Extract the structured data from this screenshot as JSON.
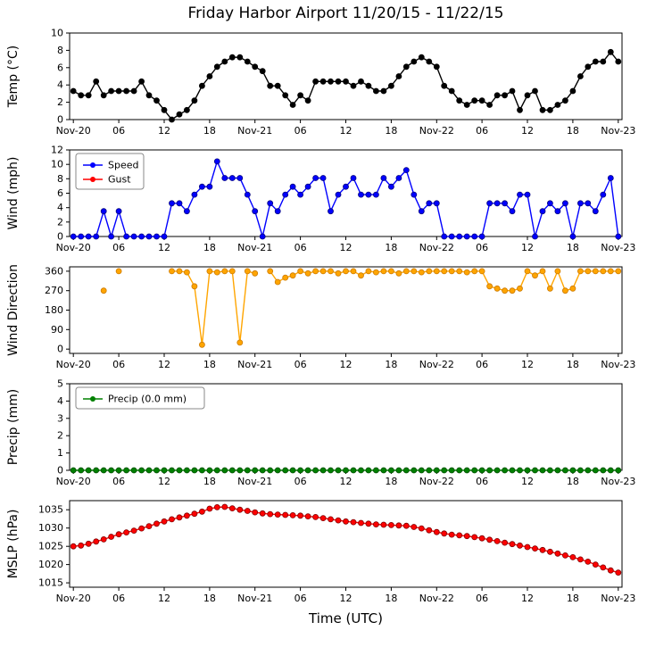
{
  "chart_data": {
    "type": "line",
    "title": "Friday Harbor Airport 11/20/15 - 11/22/15",
    "xlabel": "Time (UTC)",
    "xlim": [
      -0.5,
      72.5
    ],
    "x_ticks": {
      "positions": [
        0,
        6,
        12,
        18,
        24,
        30,
        36,
        42,
        48,
        54,
        60,
        66,
        72
      ],
      "labels": [
        "Nov-20",
        "06",
        "12",
        "18",
        "Nov-21",
        "06",
        "12",
        "18",
        "Nov-22",
        "06",
        "12",
        "18",
        "Nov-23"
      ]
    },
    "hours": [
      0,
      1,
      2,
      3,
      4,
      5,
      6,
      7,
      8,
      9,
      10,
      11,
      12,
      13,
      14,
      15,
      16,
      17,
      18,
      19,
      20,
      21,
      22,
      23,
      24,
      25,
      26,
      27,
      28,
      29,
      30,
      31,
      32,
      33,
      34,
      35,
      36,
      37,
      38,
      39,
      40,
      41,
      42,
      43,
      44,
      45,
      46,
      47,
      48,
      49,
      50,
      51,
      52,
      53,
      54,
      55,
      56,
      57,
      58,
      59,
      60,
      61,
      62,
      63,
      64,
      65,
      66,
      67,
      68,
      69,
      70,
      71,
      72
    ],
    "charts": [
      {
        "name": "temp",
        "ylabel": "Temp (°C)",
        "ylim": [
          0,
          10
        ],
        "yticks": [
          0,
          2,
          4,
          6,
          8,
          10
        ],
        "series": [
          {
            "name": "Temp",
            "color": "#000000",
            "edge": "#000000",
            "values": [
              3.3,
              2.8,
              2.8,
              4.4,
              2.8,
              3.3,
              3.3,
              3.3,
              3.3,
              4.4,
              2.8,
              2.2,
              1.1,
              0.0,
              0.6,
              1.1,
              2.2,
              3.9,
              5.0,
              6.1,
              6.7,
              7.2,
              7.2,
              6.7,
              6.1,
              5.6,
              3.9,
              3.9,
              2.8,
              1.7,
              2.8,
              2.2,
              4.4,
              4.4,
              4.4,
              4.4,
              4.4,
              3.9,
              4.4,
              3.9,
              3.3,
              3.3,
              3.9,
              5.0,
              6.1,
              6.7,
              7.2,
              6.7,
              6.1,
              3.9,
              3.3,
              2.2,
              1.7,
              2.2,
              2.2,
              1.7,
              2.8,
              2.8,
              3.3,
              1.1,
              2.8,
              3.3,
              1.1,
              1.1,
              1.7,
              2.2,
              3.3,
              5.0,
              6.1,
              6.7,
              6.7,
              7.8,
              6.7
            ]
          }
        ]
      },
      {
        "name": "wind",
        "ylabel": "Wind (mph)",
        "ylim": [
          0,
          12
        ],
        "yticks": [
          0,
          2,
          4,
          6,
          8,
          10,
          12
        ],
        "legend": [
          {
            "label": "Speed",
            "color": "#0000ff"
          },
          {
            "label": "Gust",
            "color": "#ff0000"
          }
        ],
        "series": [
          {
            "name": "Speed",
            "color": "#0000ff",
            "edge": "#000080",
            "values": [
              0,
              0,
              0,
              0,
              3.5,
              0,
              3.5,
              0,
              0,
              0,
              0,
              0,
              0,
              4.6,
              4.6,
              3.5,
              5.8,
              6.9,
              6.9,
              10.4,
              8.1,
              8.1,
              8.1,
              5.8,
              3.5,
              0,
              4.6,
              3.5,
              5.8,
              6.9,
              5.8,
              6.9,
              8.1,
              8.1,
              3.5,
              5.8,
              6.9,
              8.1,
              5.8,
              5.8,
              5.8,
              8.1,
              6.9,
              8.1,
              9.2,
              5.8,
              3.5,
              4.6,
              4.6,
              0,
              0,
              0,
              0,
              0,
              0,
              4.6,
              4.6,
              4.6,
              3.5,
              5.8,
              5.8,
              0,
              3.5,
              4.6,
              3.5,
              4.6,
              0,
              4.6,
              4.6,
              3.5,
              5.8,
              8.1,
              0
            ]
          },
          {
            "name": "Gust",
            "color": "#ff0000",
            "edge": "#800000",
            "values": null
          }
        ]
      },
      {
        "name": "wind-direction",
        "ylabel": "Wind Direction",
        "ylim": [
          -20,
          380
        ],
        "yticks": [
          0,
          90,
          180,
          270,
          360
        ],
        "series": [
          {
            "name": "Direction",
            "color": "#ffa500",
            "edge": "#cc7a00",
            "values": [
              null,
              null,
              null,
              null,
              270,
              null,
              360,
              null,
              null,
              null,
              null,
              null,
              null,
              360,
              360,
              355,
              290,
              20,
              360,
              355,
              360,
              360,
              30,
              360,
              350,
              null,
              360,
              310,
              330,
              340,
              360,
              350,
              360,
              360,
              360,
              350,
              360,
              360,
              340,
              360,
              355,
              360,
              360,
              350,
              360,
              360,
              355,
              360,
              360,
              360,
              360,
              360,
              355,
              360,
              360,
              290,
              280,
              270,
              270,
              280,
              360,
              340,
              360,
              280,
              360,
              270,
              280,
              360,
              360,
              360,
              360,
              360,
              360
            ]
          }
        ]
      },
      {
        "name": "precip",
        "ylabel": "Precip (mm)",
        "ylim": [
          0,
          5
        ],
        "yticks": [
          0,
          1,
          2,
          3,
          4,
          5
        ],
        "legend": [
          {
            "label": "Precip (0.0 mm)",
            "color": "#008000"
          }
        ],
        "series": [
          {
            "name": "Precip",
            "color": "#008000",
            "edge": "#004d00",
            "values": [
              0,
              0,
              0,
              0,
              0,
              0,
              0,
              0,
              0,
              0,
              0,
              0,
              0,
              0,
              0,
              0,
              0,
              0,
              0,
              0,
              0,
              0,
              0,
              0,
              0,
              0,
              0,
              0,
              0,
              0,
              0,
              0,
              0,
              0,
              0,
              0,
              0,
              0,
              0,
              0,
              0,
              0,
              0,
              0,
              0,
              0,
              0,
              0,
              0,
              0,
              0,
              0,
              0,
              0,
              0,
              0,
              0,
              0,
              0,
              0,
              0,
              0,
              0,
              0,
              0,
              0,
              0,
              0,
              0,
              0,
              0,
              0,
              0
            ]
          }
        ]
      },
      {
        "name": "mslp",
        "ylabel": "MSLP (hPa)",
        "ylim": [
          1013.8,
          1037.5
        ],
        "yticks": [
          1015,
          1020,
          1025,
          1030,
          1035
        ],
        "series": [
          {
            "name": "MSLP",
            "color": "#ff0000",
            "edge": "#800000",
            "values": [
              1025.0,
              1025.2,
              1025.7,
              1026.3,
              1026.9,
              1027.6,
              1028.3,
              1028.8,
              1029.3,
              1029.9,
              1030.5,
              1031.2,
              1031.8,
              1032.4,
              1032.9,
              1033.4,
              1033.9,
              1034.5,
              1035.3,
              1035.7,
              1035.8,
              1035.4,
              1035.0,
              1034.7,
              1034.3,
              1034.0,
              1033.8,
              1033.7,
              1033.6,
              1033.5,
              1033.4,
              1033.2,
              1033.0,
              1032.7,
              1032.4,
              1032.1,
              1031.8,
              1031.6,
              1031.4,
              1031.2,
              1031.0,
              1030.9,
              1030.8,
              1030.7,
              1030.6,
              1030.3,
              1029.9,
              1029.4,
              1028.9,
              1028.5,
              1028.2,
              1028.0,
              1027.8,
              1027.5,
              1027.2,
              1026.8,
              1026.4,
              1026.0,
              1025.6,
              1025.2,
              1024.8,
              1024.4,
              1024.0,
              1023.5,
              1023.0,
              1022.5,
              1022.0,
              1021.4,
              1020.8,
              1020.0,
              1019.2,
              1018.4,
              1017.8
            ]
          }
        ]
      }
    ]
  }
}
